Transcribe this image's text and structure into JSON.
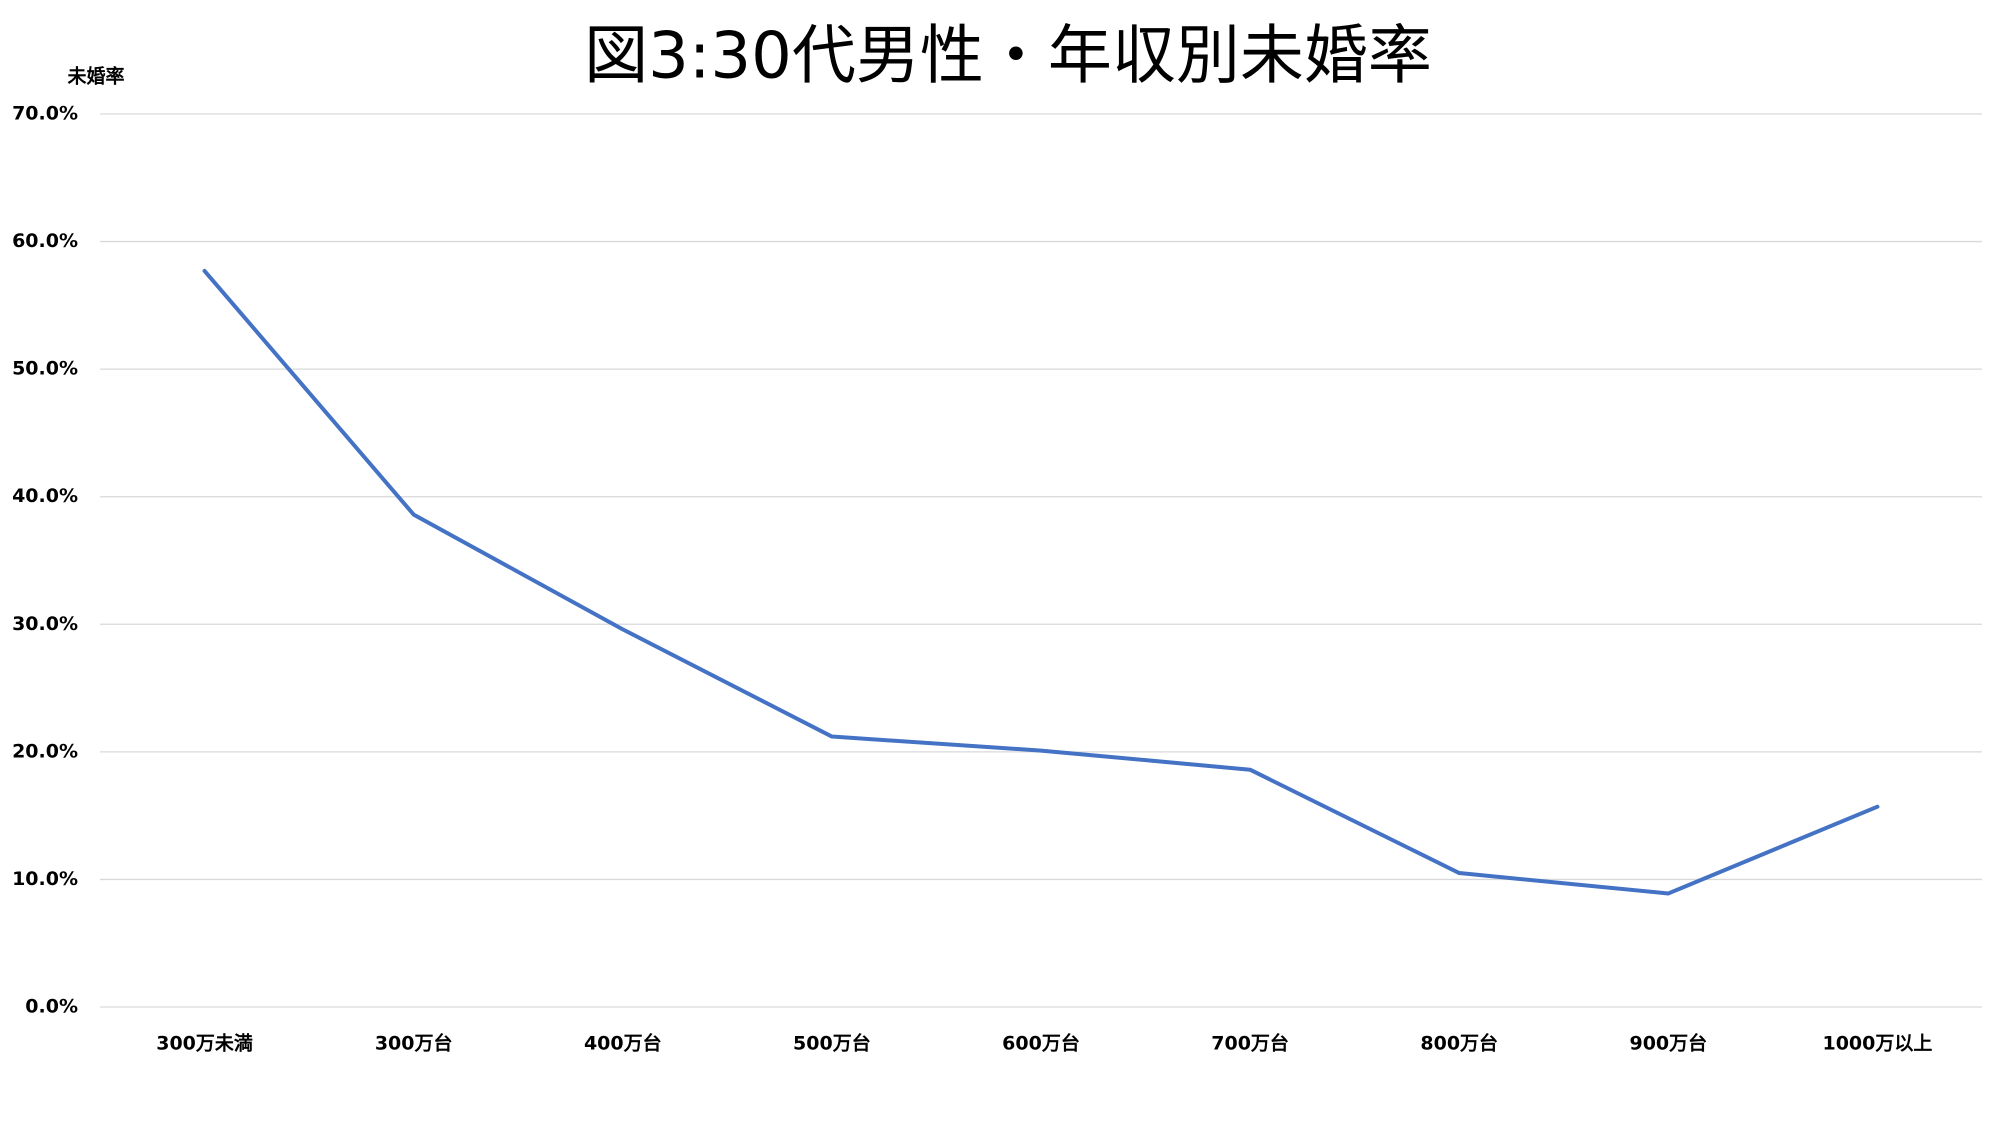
{
  "chart_data": {
    "type": "line",
    "title": "図3:30代男性・年収別未婚率",
    "y_label": "未婚率",
    "categories": [
      "300万未満",
      "300万台",
      "400万台",
      "500万台",
      "600万台",
      "700万台",
      "800万台",
      "900万台",
      "1000万以上"
    ],
    "series": [
      {
        "name": "未婚率",
        "color": "#4472c4",
        "values": [
          57.7,
          38.6,
          29.6,
          21.2,
          20.1,
          18.6,
          10.5,
          8.9,
          15.7
        ]
      }
    ],
    "ylim": [
      0,
      70
    ],
    "yticks": [
      {
        "value": 0,
        "label": "0.0%"
      },
      {
        "value": 10,
        "label": "10.0%"
      },
      {
        "value": 20,
        "label": "20.0%"
      },
      {
        "value": 30,
        "label": "30.0%"
      },
      {
        "value": 40,
        "label": "40.0%"
      },
      {
        "value": 50,
        "label": "50.0%"
      },
      {
        "value": 60,
        "label": "60.0%"
      },
      {
        "value": 70,
        "label": "70.0%"
      }
    ],
    "grid": true
  }
}
